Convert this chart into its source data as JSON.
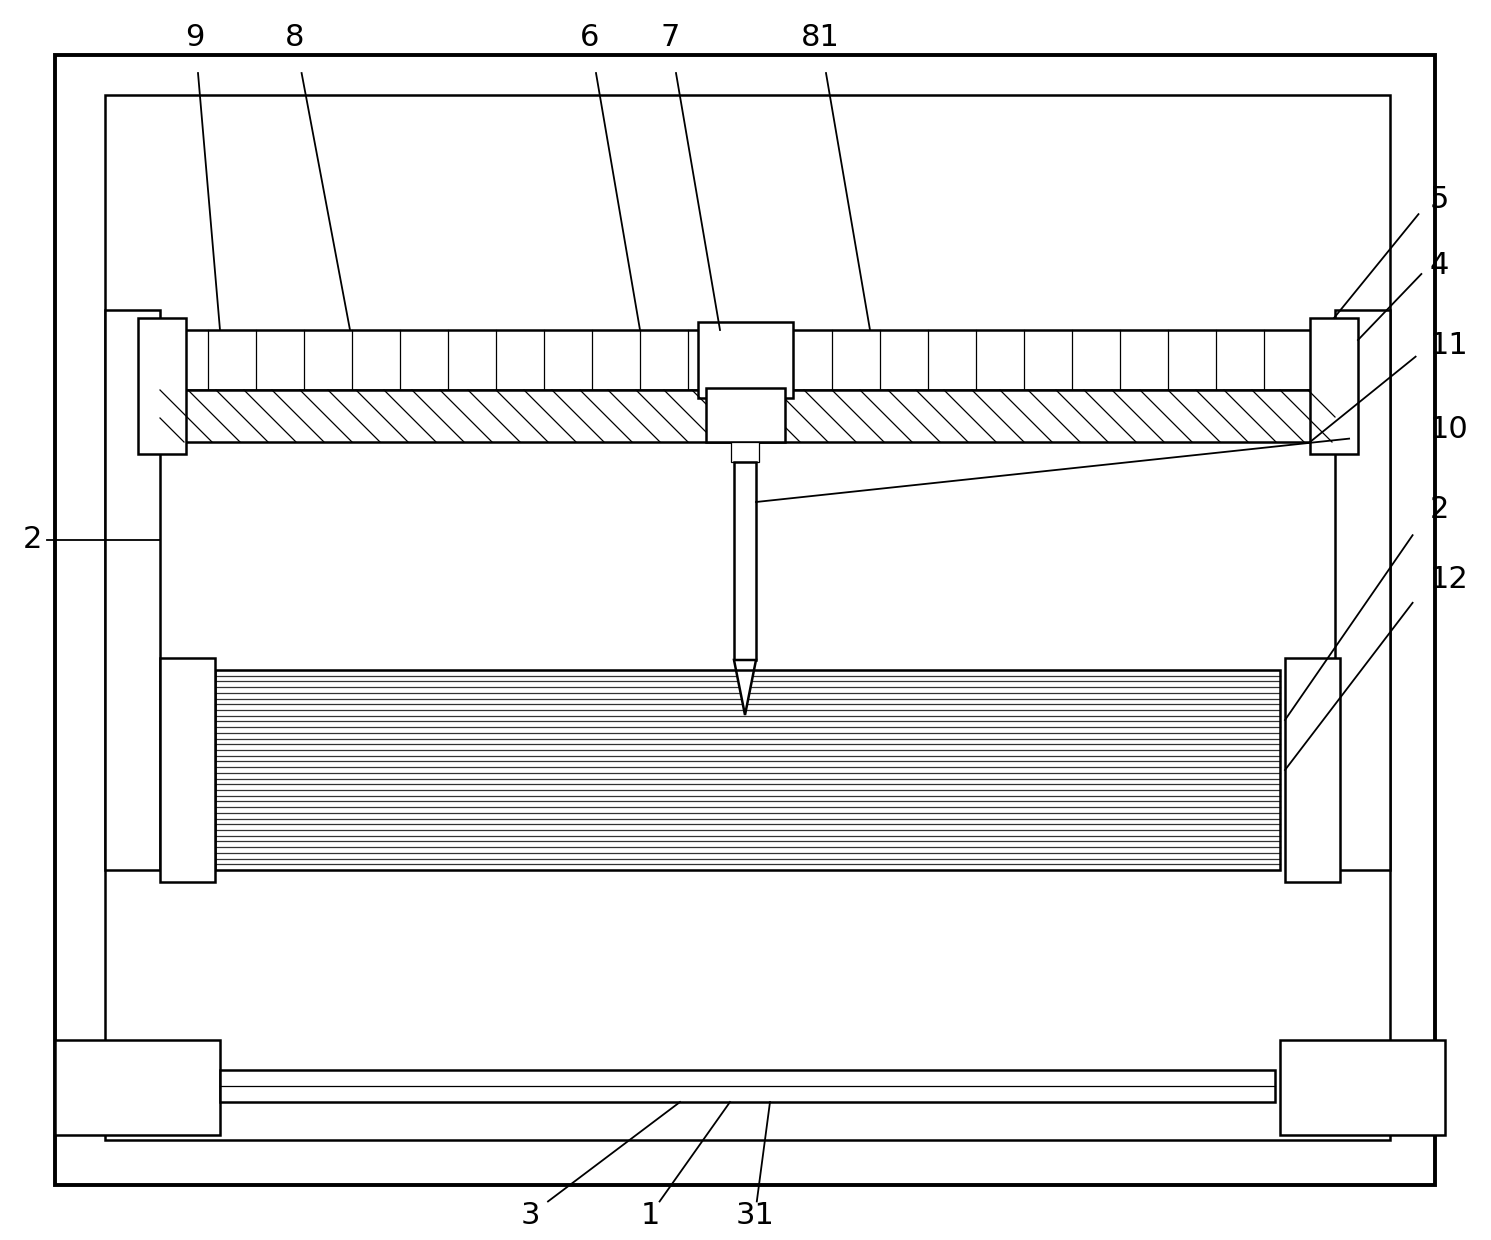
{
  "bg_color": "#ffffff",
  "line_color": "#000000",
  "lw_outer": 2.8,
  "lw_main": 1.8,
  "lw_thin": 0.9,
  "fig_width": 14.91,
  "fig_height": 12.4,
  "dpi": 100
}
